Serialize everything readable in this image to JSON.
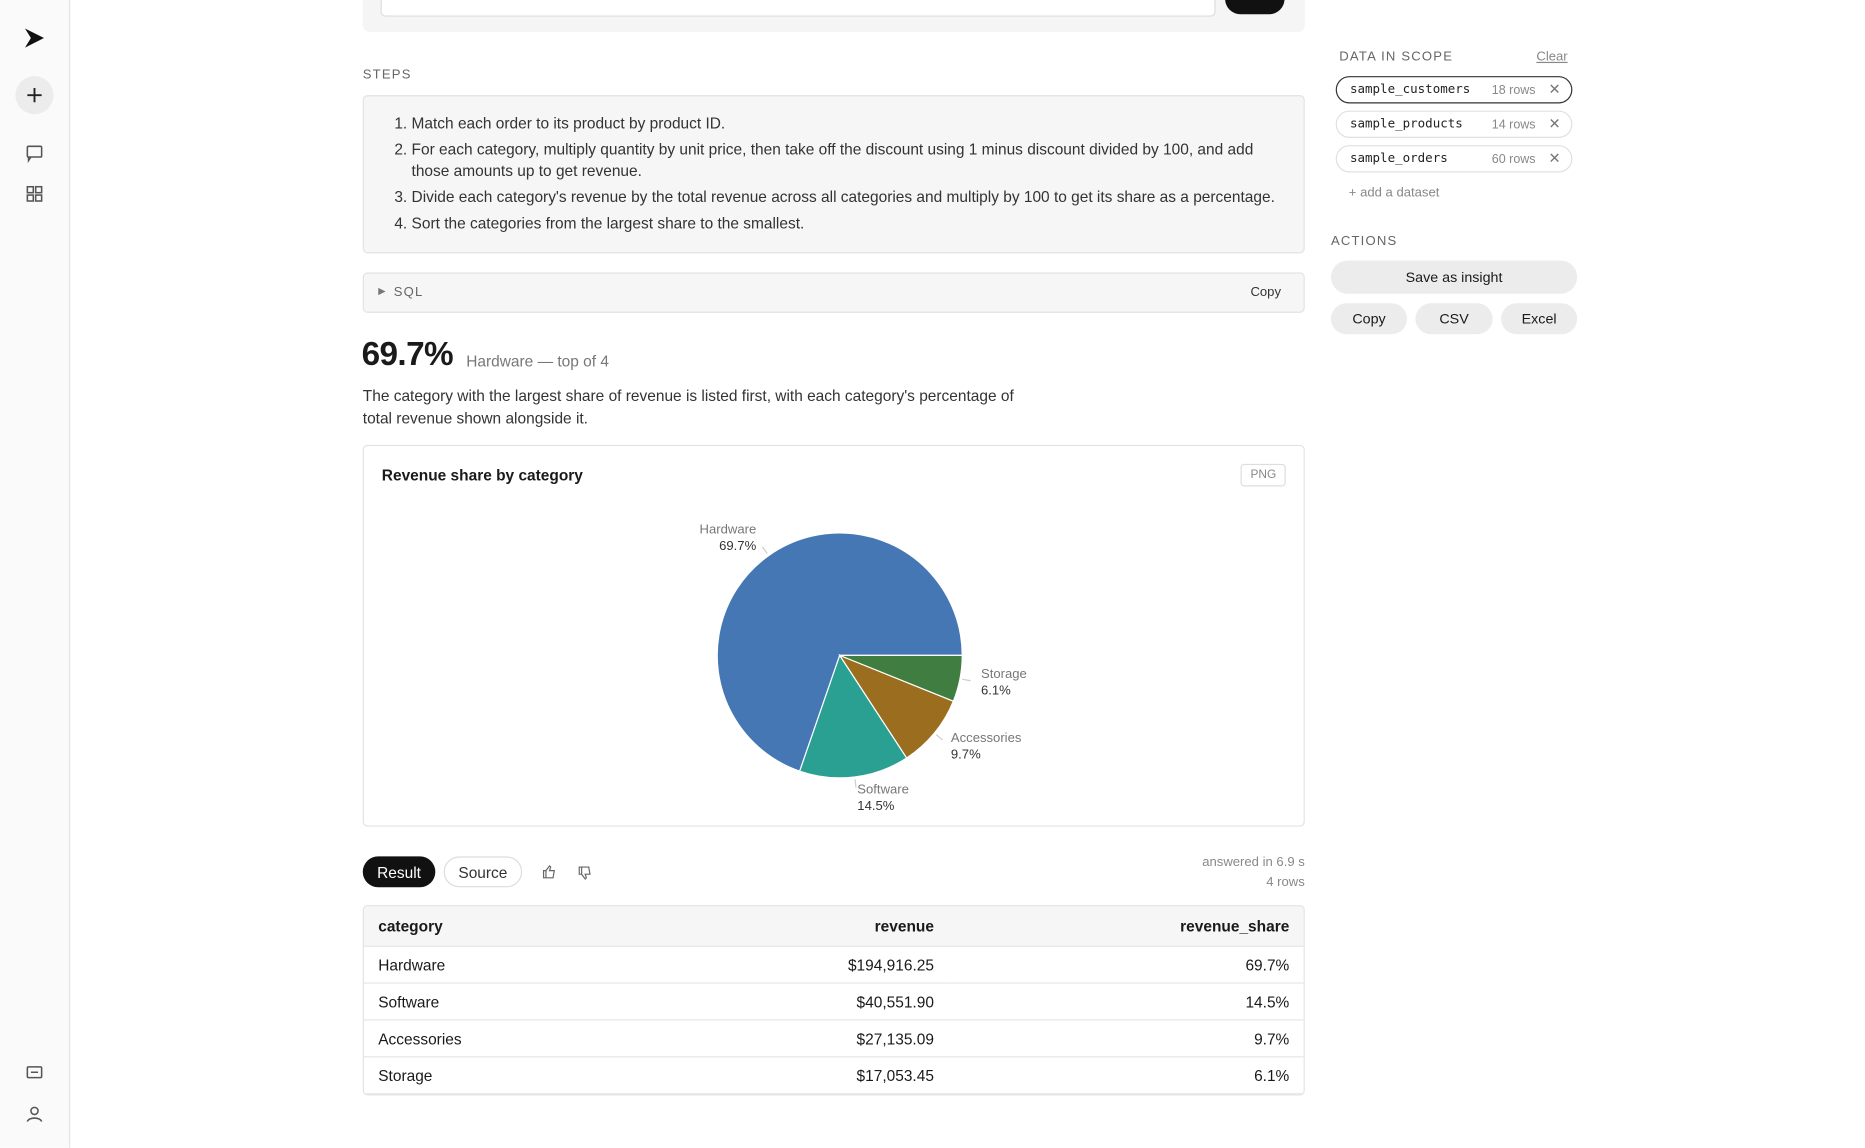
{
  "steps": {
    "label": "STEPS",
    "items": [
      "Match each order to its product by product ID.",
      "For each category, multiply quantity by unit price, then take off the discount using 1 minus discount divided by 100, and add those amounts up to get revenue.",
      "Divide each category's revenue by the total revenue across all categories and multiply by 100 to get its share as a percentage.",
      "Sort the categories from the largest share to the smallest."
    ]
  },
  "sql": {
    "label": "SQL",
    "copy": "Copy"
  },
  "headline": {
    "value": "69.7%",
    "caption": "Hardware — top of 4",
    "summary": "The category with the largest share of revenue is listed first, with each category's percentage of total revenue shown alongside it."
  },
  "chart_data": {
    "type": "pie",
    "title": "Revenue share by category",
    "export_label": "PNG",
    "categories": [
      "Hardware",
      "Software",
      "Accessories",
      "Storage"
    ],
    "values": [
      69.7,
      14.5,
      9.7,
      6.1
    ],
    "value_labels": [
      "69.7%",
      "14.5%",
      "9.7%",
      "6.1%"
    ],
    "colors": [
      "#4477b4",
      "#2aa093",
      "#9a6e1e",
      "#3f7d40"
    ]
  },
  "results": {
    "tabs": [
      "Result",
      "Source"
    ],
    "timing": "answered in 6.9 s",
    "row_count": "4 rows",
    "table": {
      "columns": [
        "category",
        "revenue",
        "revenue_share"
      ],
      "rows": [
        [
          "Hardware",
          "$194,916.25",
          "69.7%"
        ],
        [
          "Software",
          "$40,551.90",
          "14.5%"
        ],
        [
          "Accessories",
          "$27,135.09",
          "9.7%"
        ],
        [
          "Storage",
          "$17,053.45",
          "6.1%"
        ]
      ]
    }
  },
  "scope": {
    "label": "DATA IN SCOPE",
    "clear": "Clear",
    "add": "+ add a dataset",
    "datasets": [
      {
        "name": "sample_customers",
        "rows": "18 rows"
      },
      {
        "name": "sample_products",
        "rows": "14 rows"
      },
      {
        "name": "sample_orders",
        "rows": "60 rows"
      }
    ]
  },
  "actions": {
    "label": "ACTIONS",
    "primary": "Save as insight",
    "buttons": [
      "Copy",
      "CSV",
      "Excel"
    ]
  }
}
